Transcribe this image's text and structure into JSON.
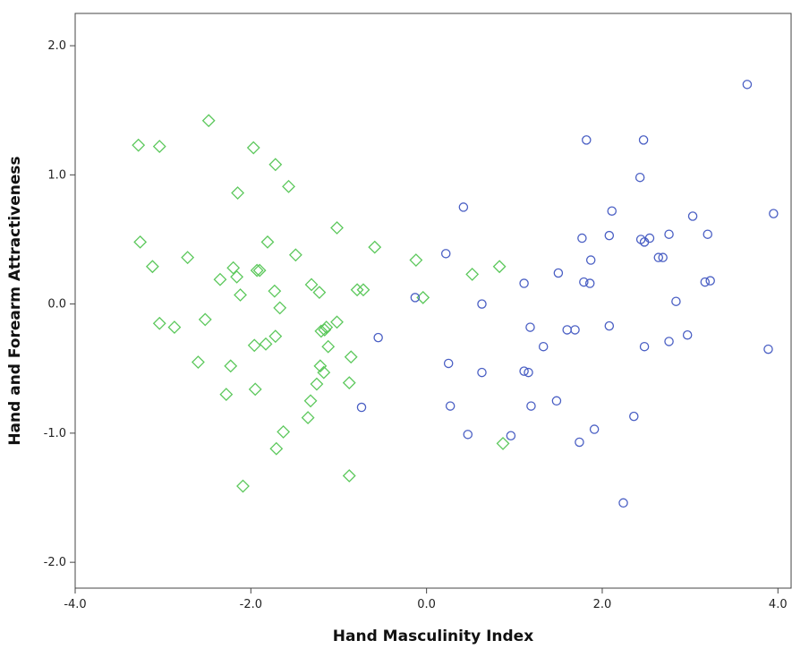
{
  "chart_data": {
    "type": "scatter",
    "title": "",
    "xlabel": "Hand Masculinity Index",
    "ylabel": "Hand and Forearm Attractiveness",
    "xlim": [
      -4.0,
      4.15
    ],
    "ylim": [
      -2.2,
      2.25
    ],
    "xticks": [
      -4.0,
      -2.0,
      0.0,
      2.0,
      4.0
    ],
    "xtick_labels": [
      "-4.0",
      "-2.0",
      "0.0",
      "2.0",
      "4.0"
    ],
    "yticks": [
      -2.0,
      -1.0,
      0.0,
      1.0,
      2.0
    ],
    "ytick_labels": [
      "-2.0",
      "-1.0",
      "0.0",
      "1.0",
      "2.0"
    ],
    "grid": false,
    "legend": "none",
    "series": [
      {
        "marker": "diamond",
        "color": "#5cc85c",
        "points": [
          [
            -2.48,
            1.42
          ],
          [
            -3.28,
            1.23
          ],
          [
            -3.04,
            1.22
          ],
          [
            -1.97,
            1.21
          ],
          [
            -1.72,
            1.08
          ],
          [
            -1.57,
            0.91
          ],
          [
            -2.15,
            0.86
          ],
          [
            -1.02,
            0.59
          ],
          [
            -3.26,
            0.48
          ],
          [
            -1.81,
            0.48
          ],
          [
            -0.59,
            0.44
          ],
          [
            -2.72,
            0.36
          ],
          [
            -1.49,
            0.38
          ],
          [
            -0.12,
            0.34
          ],
          [
            -3.12,
            0.29
          ],
          [
            -2.2,
            0.28
          ],
          [
            -1.93,
            0.26
          ],
          [
            -1.9,
            0.26
          ],
          [
            0.83,
            0.29
          ],
          [
            -2.35,
            0.19
          ],
          [
            -2.16,
            0.21
          ],
          [
            0.52,
            0.23
          ],
          [
            -1.31,
            0.15
          ],
          [
            -1.22,
            0.09
          ],
          [
            -1.73,
            0.1
          ],
          [
            -0.79,
            0.11
          ],
          [
            -0.72,
            0.11
          ],
          [
            -2.12,
            0.07
          ],
          [
            -0.04,
            0.05
          ],
          [
            -1.67,
            -0.03
          ],
          [
            -3.04,
            -0.15
          ],
          [
            -2.87,
            -0.18
          ],
          [
            -2.52,
            -0.12
          ],
          [
            -1.02,
            -0.14
          ],
          [
            -1.14,
            -0.18
          ],
          [
            -1.16,
            -0.2
          ],
          [
            -1.2,
            -0.21
          ],
          [
            -1.72,
            -0.25
          ],
          [
            -1.83,
            -0.31
          ],
          [
            -1.96,
            -0.32
          ],
          [
            -1.12,
            -0.33
          ],
          [
            -2.6,
            -0.45
          ],
          [
            -0.86,
            -0.41
          ],
          [
            -2.23,
            -0.48
          ],
          [
            -1.21,
            -0.48
          ],
          [
            -1.17,
            -0.53
          ],
          [
            -1.25,
            -0.62
          ],
          [
            -0.88,
            -0.61
          ],
          [
            -2.28,
            -0.7
          ],
          [
            -1.95,
            -0.66
          ],
          [
            -1.32,
            -0.75
          ],
          [
            -1.35,
            -0.88
          ],
          [
            -1.63,
            -0.99
          ],
          [
            -1.71,
            -1.12
          ],
          [
            0.87,
            -1.08
          ],
          [
            -0.88,
            -1.33
          ],
          [
            -2.09,
            -1.41
          ]
        ]
      },
      {
        "marker": "circle",
        "color": "#4a5fc4",
        "points": [
          [
            3.65,
            1.7
          ],
          [
            1.82,
            1.27
          ],
          [
            2.47,
            1.27
          ],
          [
            2.43,
            0.98
          ],
          [
            0.42,
            0.75
          ],
          [
            2.11,
            0.72
          ],
          [
            3.95,
            0.7
          ],
          [
            3.03,
            0.68
          ],
          [
            2.76,
            0.54
          ],
          [
            3.2,
            0.54
          ],
          [
            2.08,
            0.53
          ],
          [
            1.77,
            0.51
          ],
          [
            2.44,
            0.5
          ],
          [
            2.48,
            0.48
          ],
          [
            2.54,
            0.51
          ],
          [
            0.22,
            0.39
          ],
          [
            2.64,
            0.36
          ],
          [
            2.69,
            0.36
          ],
          [
            1.87,
            0.34
          ],
          [
            1.5,
            0.24
          ],
          [
            1.11,
            0.16
          ],
          [
            1.79,
            0.17
          ],
          [
            1.86,
            0.16
          ],
          [
            3.17,
            0.17
          ],
          [
            3.23,
            0.18
          ],
          [
            -0.13,
            0.05
          ],
          [
            0.63,
            0.0
          ],
          [
            2.84,
            0.02
          ],
          [
            1.18,
            -0.18
          ],
          [
            1.6,
            -0.2
          ],
          [
            1.69,
            -0.2
          ],
          [
            2.08,
            -0.17
          ],
          [
            -0.55,
            -0.26
          ],
          [
            2.97,
            -0.24
          ],
          [
            2.76,
            -0.29
          ],
          [
            1.33,
            -0.33
          ],
          [
            2.48,
            -0.33
          ],
          [
            3.89,
            -0.35
          ],
          [
            0.25,
            -0.46
          ],
          [
            1.11,
            -0.52
          ],
          [
            1.16,
            -0.53
          ],
          [
            0.63,
            -0.53
          ],
          [
            1.48,
            -0.75
          ],
          [
            -0.74,
            -0.8
          ],
          [
            0.27,
            -0.79
          ],
          [
            1.19,
            -0.79
          ],
          [
            2.36,
            -0.87
          ],
          [
            1.91,
            -0.97
          ],
          [
            0.47,
            -1.01
          ],
          [
            0.96,
            -1.02
          ],
          [
            1.74,
            -1.07
          ],
          [
            2.24,
            -1.54
          ]
        ]
      }
    ]
  }
}
